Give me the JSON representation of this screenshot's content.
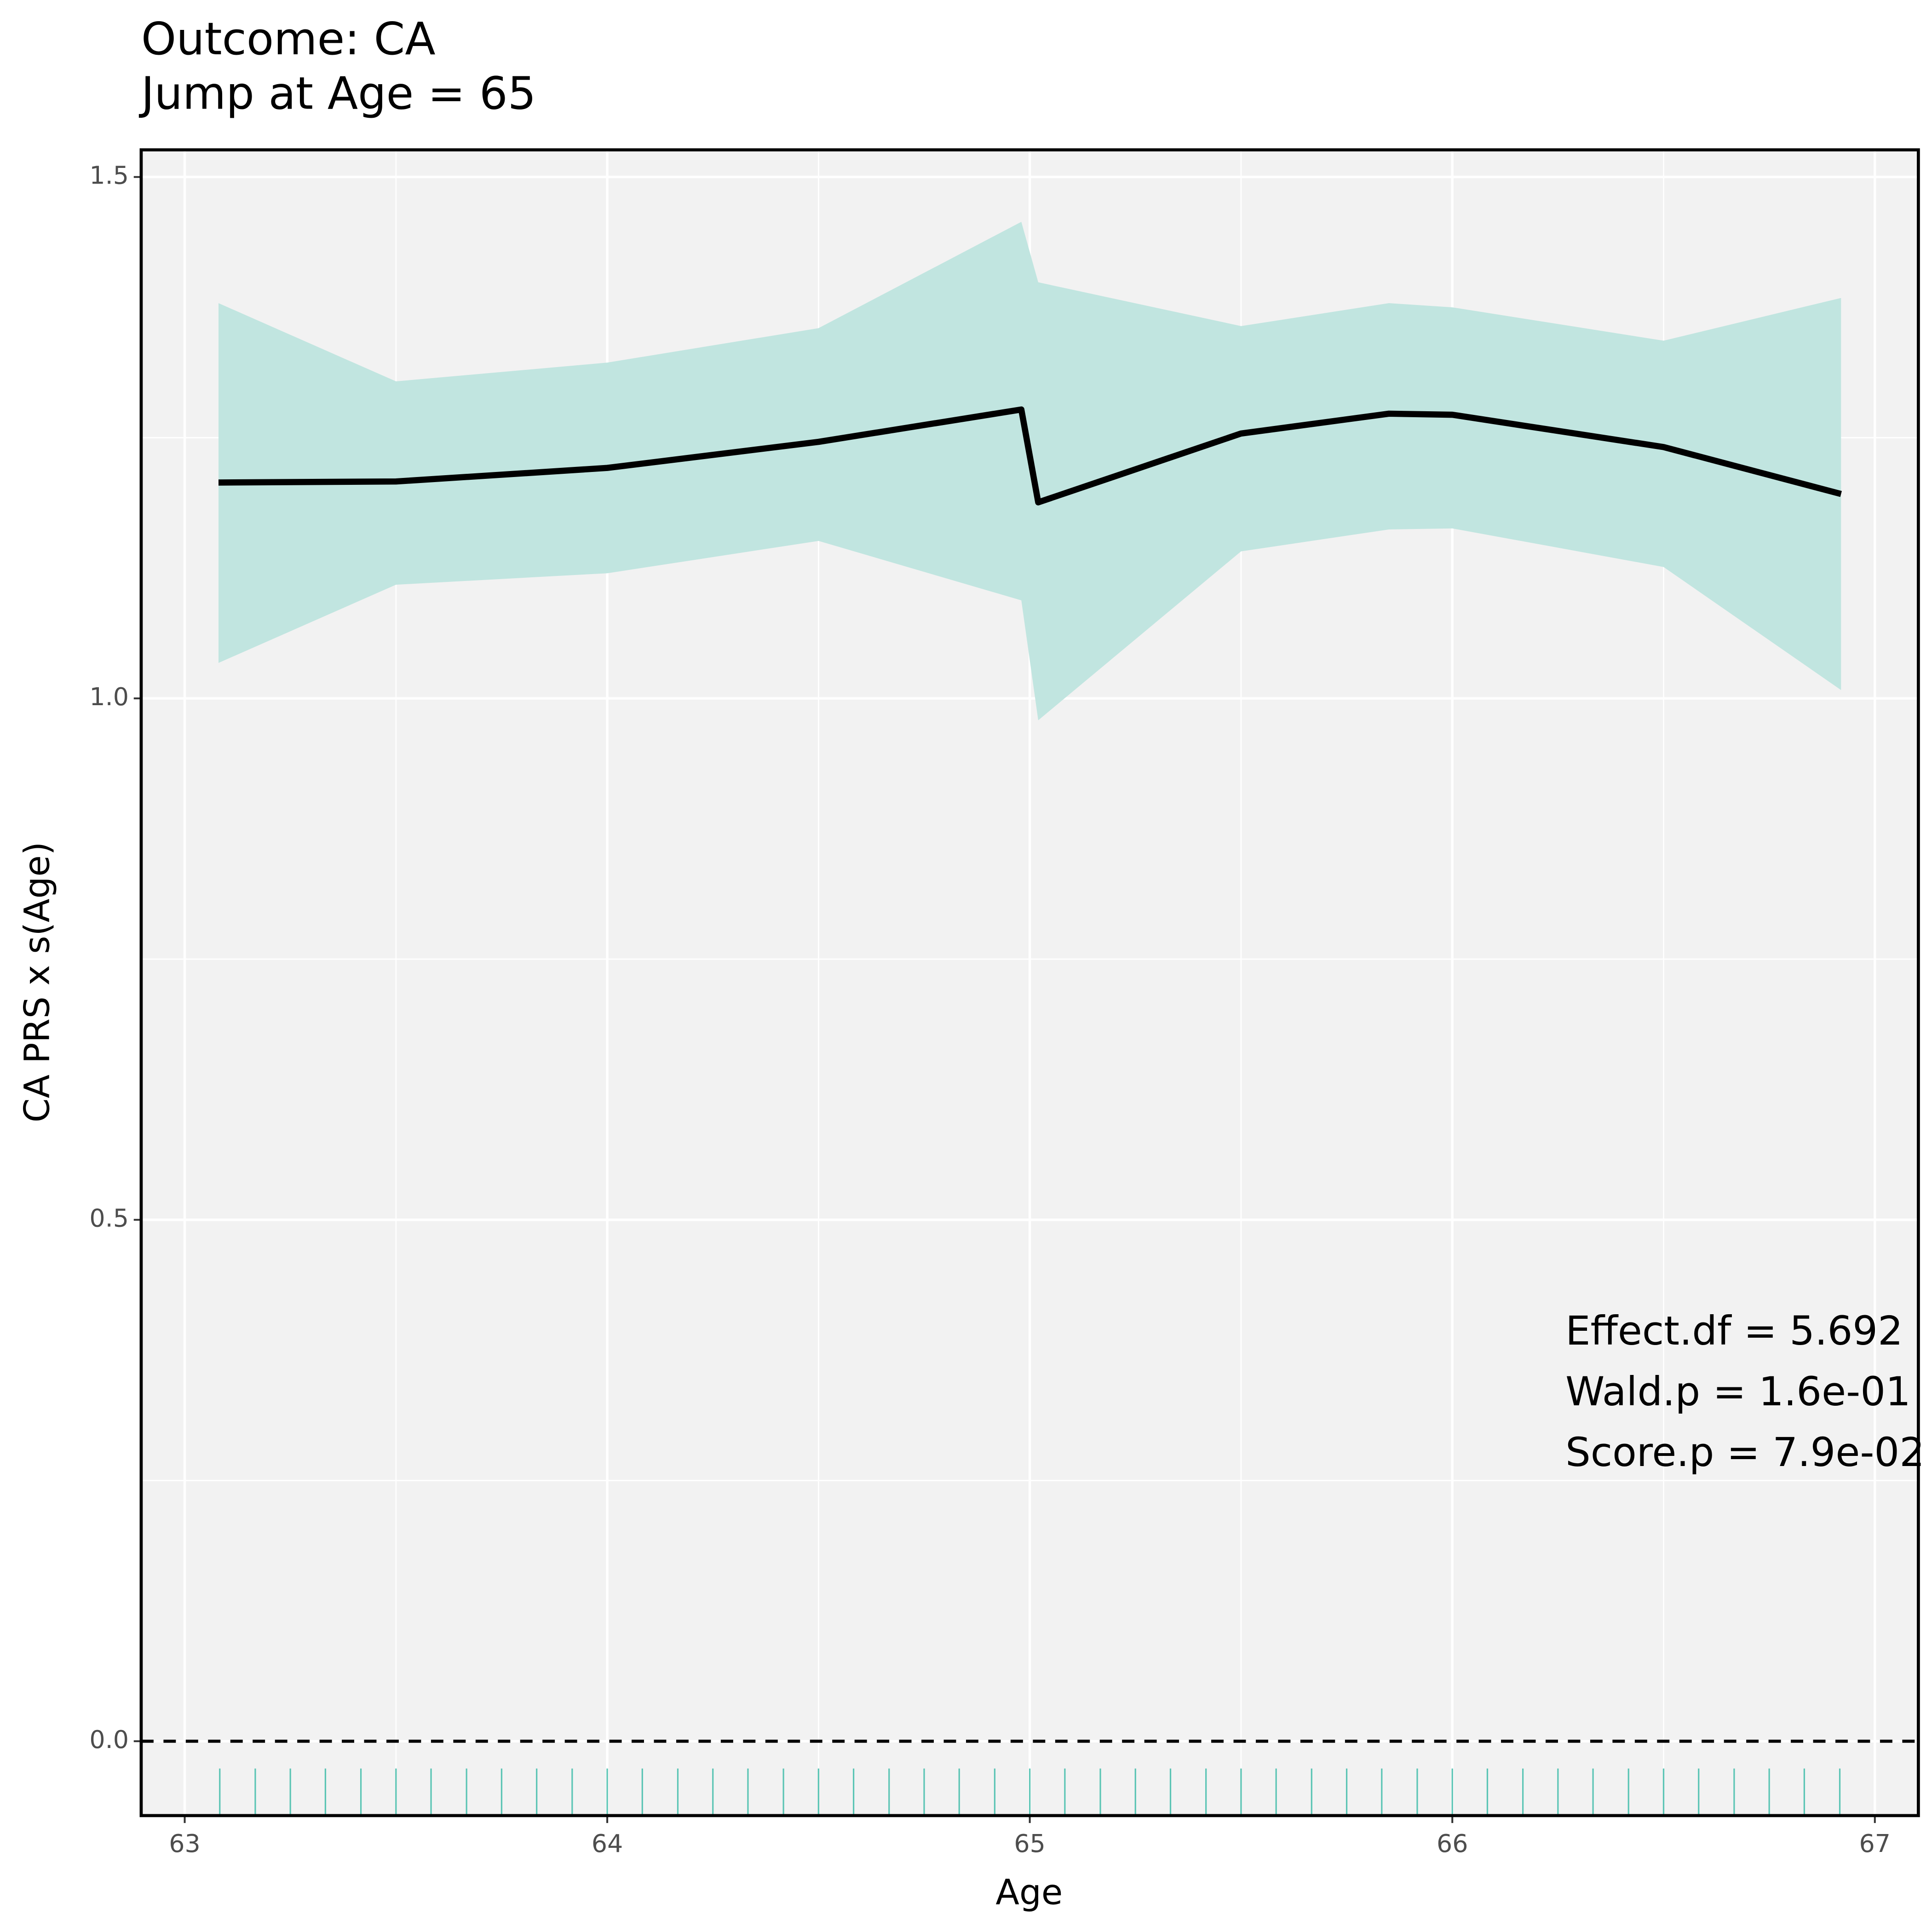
{
  "chart_data": {
    "type": "line",
    "title": "Outcome: CA",
    "subtitle": "Jump at Age = 65",
    "x_label": "Age",
    "y_label": "CA PRS x s(Age)",
    "x": [
      63.08,
      63.5,
      64,
      64.5,
      64.98,
      65.02,
      65.5,
      65.85,
      66,
      66.5,
      66.92
    ],
    "values": [
      1.207,
      1.208,
      1.221,
      1.246,
      1.277,
      1.188,
      1.254,
      1.273,
      1.272,
      1.241,
      1.196
    ],
    "upper": [
      1.379,
      1.304,
      1.322,
      1.355,
      1.457,
      1.399,
      1.357,
      1.379,
      1.375,
      1.343,
      1.384
    ],
    "lower": [
      1.034,
      1.109,
      1.12,
      1.151,
      1.094,
      0.979,
      1.141,
      1.162,
      1.163,
      1.126,
      1.008
    ],
    "line_color": "#000000",
    "band_color": "#c1e5e0",
    "rug_color": "#5cc5b5",
    "rug": [
      63.083,
      63.167,
      63.25,
      63.333,
      63.417,
      63.5,
      63.583,
      63.667,
      63.75,
      63.833,
      63.917,
      64.0,
      64.083,
      64.167,
      64.25,
      64.333,
      64.417,
      64.5,
      64.583,
      64.667,
      64.75,
      64.833,
      64.917,
      65.0,
      65.083,
      65.167,
      65.25,
      65.333,
      65.417,
      65.5,
      65.583,
      65.667,
      65.75,
      65.833,
      65.917,
      66.0,
      66.083,
      66.167,
      66.25,
      66.333,
      66.417,
      66.5,
      66.583,
      66.667,
      66.75,
      66.833,
      66.917
    ],
    "hline": 0,
    "xlim": [
      62.897,
      67.103
    ],
    "ylim": [
      -0.0713,
      1.526
    ],
    "xticks": [
      63,
      64,
      65,
      66,
      67
    ],
    "yticks": [
      {
        "value": 0,
        "label": "0.0"
      },
      0.5,
      {
        "value": 1,
        "label": "1.0"
      },
      1.5
    ],
    "xminor": [
      63.5,
      64.5,
      65.5,
      66.5
    ],
    "yminor": [
      0.25,
      0.75,
      1.25
    ],
    "grid": true,
    "annotations": [
      "Effect.df = 5.692",
      "Wald.p = 1.6e-01",
      "Score.p = 7.9e-02"
    ]
  }
}
